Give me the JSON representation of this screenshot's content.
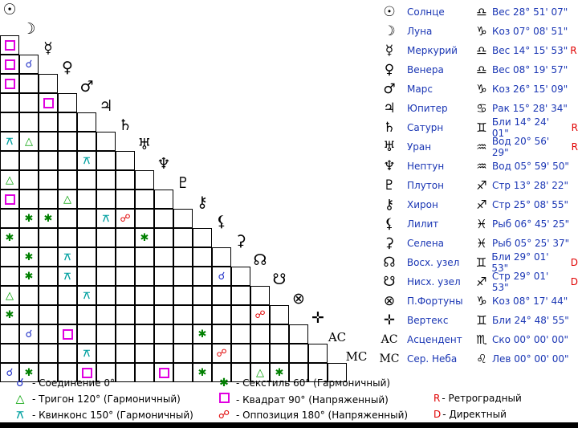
{
  "aspect_symbols": {
    "C": "☌",
    "T": "△",
    "X": "✱",
    "Q": "",
    "K": "⚻",
    "O": "☍"
  },
  "aspect_grid": [
    [
      "Q",
      "",
      "",
      "",
      "",
      "",
      "",
      "",
      "",
      "",
      "",
      "",
      "",
      "",
      "",
      "",
      "",
      "",
      "",
      "",
      ""
    ],
    [
      "Q",
      "C",
      "",
      "",
      "",
      "",
      "",
      "",
      "",
      "",
      "",
      "",
      "",
      "",
      "",
      "",
      "",
      "",
      "",
      "",
      ""
    ],
    [
      "Q",
      "",
      "",
      "",
      "",
      "",
      "",
      "",
      "",
      "",
      "",
      "",
      "",
      "",
      "",
      "",
      "",
      "",
      "",
      "",
      ""
    ],
    [
      "",
      "",
      "Q",
      "",
      "",
      "",
      "",
      "",
      "",
      "",
      "",
      "",
      "",
      "",
      "",
      "",
      "",
      "",
      "",
      "",
      ""
    ],
    [
      "",
      "",
      "",
      "",
      "",
      "",
      "",
      "",
      "",
      "",
      "",
      "",
      "",
      "",
      "",
      "",
      "",
      "",
      "",
      "",
      ""
    ],
    [
      "K",
      "T",
      "",
      "",
      "",
      "",
      "",
      "",
      "",
      "",
      "",
      "",
      "",
      "",
      "",
      "",
      "",
      "",
      "",
      "",
      ""
    ],
    [
      "",
      "",
      "",
      "",
      "K",
      "",
      "",
      "",
      "",
      "",
      "",
      "",
      "",
      "",
      "",
      "",
      "",
      "",
      "",
      "",
      ""
    ],
    [
      "T",
      "",
      "",
      "",
      "",
      "",
      "",
      "",
      "",
      "",
      "",
      "",
      "",
      "",
      "",
      "",
      "",
      "",
      "",
      "",
      ""
    ],
    [
      "Q",
      "",
      "",
      "T",
      "",
      "",
      "",
      "",
      "",
      "",
      "",
      "",
      "",
      "",
      "",
      "",
      "",
      "",
      "",
      "",
      ""
    ],
    [
      "",
      "X",
      "X",
      "",
      "",
      "K",
      "O",
      "",
      "",
      "",
      "",
      "",
      "",
      "",
      "",
      "",
      "",
      "",
      "",
      "",
      ""
    ],
    [
      "X",
      "",
      "",
      "",
      "",
      "",
      "",
      "X",
      "",
      "",
      "",
      "",
      "",
      "",
      "",
      "",
      "",
      "",
      "",
      "",
      ""
    ],
    [
      "",
      "X",
      "",
      "K",
      "",
      "",
      "",
      "",
      "",
      "",
      "",
      "",
      "",
      "",
      "",
      "",
      "",
      "",
      "",
      "",
      ""
    ],
    [
      "",
      "X",
      "",
      "K",
      "",
      "",
      "",
      "",
      "",
      "",
      "",
      "C",
      "",
      "",
      "",
      "",
      "",
      "",
      "",
      "",
      ""
    ],
    [
      "T",
      "",
      "",
      "",
      "K",
      "",
      "",
      "",
      "",
      "",
      "",
      "",
      "",
      "",
      "",
      "",
      "",
      "",
      "",
      "",
      ""
    ],
    [
      "X",
      "",
      "",
      "",
      "",
      "",
      "",
      "",
      "",
      "",
      "",
      "",
      "",
      "O",
      "",
      "",
      "",
      "",
      "",
      "",
      ""
    ],
    [
      "",
      "C",
      "",
      "Q",
      "",
      "",
      "",
      "",
      "",
      "",
      "X",
      "",
      "",
      "",
      "",
      "",
      "",
      "",
      "",
      "",
      ""
    ],
    [
      "",
      "",
      "",
      "",
      "K",
      "",
      "",
      "",
      "",
      "",
      "",
      "O",
      "",
      "",
      "",
      "",
      "",
      "",
      "",
      "",
      ""
    ],
    [
      "C",
      "X",
      "",
      "",
      "Q",
      "",
      "",
      "",
      "Q",
      "",
      "X",
      "",
      "",
      "T",
      "X",
      "",
      "",
      "",
      "",
      "",
      ""
    ],
    [
      "Q",
      "K",
      "",
      "",
      "O",
      "",
      "",
      "",
      "O",
      "",
      "K",
      "",
      "",
      "",
      "K",
      "",
      "",
      "",
      "Q",
      "",
      ""
    ]
  ],
  "diagonal_glyphs": [
    "☉",
    "☽",
    "☿",
    "♀",
    "♂",
    "♃",
    "♄",
    "♅",
    "♆",
    "♇",
    "⚷",
    "⚸",
    "⚳",
    "☊",
    "☋",
    "⊗",
    "✛",
    "AC",
    "MC"
  ],
  "planets": [
    {
      "glyph": "☉",
      "name": "Солнце",
      "sign": "♎",
      "pos": "Вес 28° 51' 07\"",
      "flag": ""
    },
    {
      "glyph": "☽",
      "name": "Луна",
      "sign": "♑",
      "pos": "Коз 07° 08' 51\"",
      "flag": ""
    },
    {
      "glyph": "☿",
      "name": "Меркурий",
      "sign": "♎",
      "pos": "Вес 14° 15' 53\"",
      "flag": "R"
    },
    {
      "glyph": "♀",
      "name": "Венера",
      "sign": "♎",
      "pos": "Вес 08° 19' 57\"",
      "flag": ""
    },
    {
      "glyph": "♂",
      "name": "Марс",
      "sign": "♑",
      "pos": "Коз 26° 15' 09\"",
      "flag": ""
    },
    {
      "glyph": "♃",
      "name": "Юпитер",
      "sign": "♋",
      "pos": "Рак 15° 28' 34\"",
      "flag": ""
    },
    {
      "glyph": "♄",
      "name": "Сатурн",
      "sign": "♊",
      "pos": "Бли 14° 24' 01\"",
      "flag": "R"
    },
    {
      "glyph": "♅",
      "name": "Уран",
      "sign": "♒",
      "pos": "Вод 20° 56' 29\"",
      "flag": "R"
    },
    {
      "glyph": "♆",
      "name": "Нептун",
      "sign": "♒",
      "pos": "Вод 05° 59' 50\"",
      "flag": ""
    },
    {
      "glyph": "♇",
      "name": "Плутон",
      "sign": "♐",
      "pos": "Стр 13° 28' 22\"",
      "flag": ""
    },
    {
      "glyph": "⚷",
      "name": "Хирон",
      "sign": "♐",
      "pos": "Стр 25° 08' 55\"",
      "flag": ""
    },
    {
      "glyph": "⚸",
      "name": "Лилит",
      "sign": "♓",
      "pos": "Рыб 06° 45' 25\"",
      "flag": ""
    },
    {
      "glyph": "⚳",
      "name": "Селена",
      "sign": "♓",
      "pos": "Рыб 05° 25' 37\"",
      "flag": ""
    },
    {
      "glyph": "☊",
      "name": "Восх. узел",
      "sign": "♊",
      "pos": "Бли 29° 01' 53\"",
      "flag": "D"
    },
    {
      "glyph": "☋",
      "name": "Нисх. узел",
      "sign": "♐",
      "pos": "Стр 29° 01' 53\"",
      "flag": "D"
    },
    {
      "glyph": "⊗",
      "name": "П.Фортуны",
      "sign": "♑",
      "pos": "Коз 08° 17' 44\"",
      "flag": ""
    },
    {
      "glyph": "✛",
      "name": "Вертекс",
      "sign": "♊",
      "pos": "Бли 24° 48' 55\"",
      "flag": ""
    },
    {
      "glyph": "AC",
      "name": "Асцендент",
      "sign": "♏",
      "pos": "Ско 00° 00' 00\"",
      "flag": ""
    },
    {
      "glyph": "MC",
      "name": "Сер. Неба",
      "sign": "♌",
      "pos": "Лев 00° 00' 00\"",
      "flag": ""
    }
  ],
  "legend": {
    "conjunction": "- Соединение 0°",
    "trine": "- Тригон 120° (Гармоничный)",
    "quincunx": "- Квинконс 150° (Гармоничный)",
    "sextile": "- Секстиль 60° (Гармоничный)",
    "square": "- Квадрат 90° (Напряженный)",
    "opposition": "- Оппозиция 180° (Напряженный)",
    "retro_letter": "R",
    "retro_text": "- Ретроградный",
    "direct_letter": "D",
    "direct_text": "- Директный"
  },
  "colors": {
    "names": "#1a36b4",
    "conjunction": "#2030c8",
    "trine": "#00a000",
    "sextile": "#008000",
    "quincunx": "#00a0a0",
    "square": "#e000e0",
    "opposition": "#e00000"
  }
}
